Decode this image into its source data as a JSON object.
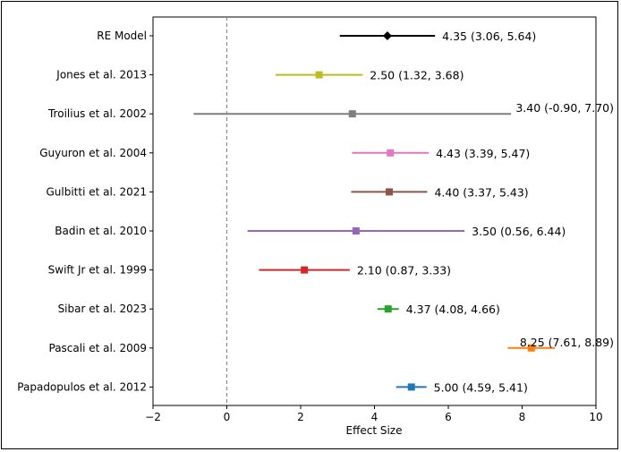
{
  "chart_data": {
    "type": "forest",
    "xlabel": "Effect Size",
    "xlim": [
      -2,
      10
    ],
    "xticks": [
      -2,
      0,
      2,
      4,
      6,
      8,
      10
    ],
    "xtick_labels": [
      "−2",
      "0",
      "2",
      "4",
      "6",
      "8",
      "10"
    ],
    "reference_line": 0,
    "grid": false,
    "studies": [
      {
        "label": "RE Model",
        "estimate": 4.35,
        "lower": 3.06,
        "upper": 5.64,
        "ci_text": "4.35 (3.06, 5.64)",
        "color": "#000000",
        "marker": "diamond"
      },
      {
        "label": "Jones et al. 2013",
        "estimate": 2.5,
        "lower": 1.32,
        "upper": 3.68,
        "ci_text": "2.50 (1.32, 3.68)",
        "color": "#bcbd22",
        "marker": "square"
      },
      {
        "label": "Troilius et al. 2002",
        "estimate": 3.4,
        "lower": -0.9,
        "upper": 7.7,
        "ci_text": "3.40 (-0.90, 7.70)",
        "color": "#7f7f7f",
        "marker": "square"
      },
      {
        "label": "Guyuron et al. 2004",
        "estimate": 4.43,
        "lower": 3.39,
        "upper": 5.47,
        "ci_text": "4.43 (3.39, 5.47)",
        "color": "#e377c2",
        "marker": "square"
      },
      {
        "label": "Gulbitti et al. 2021",
        "estimate": 4.4,
        "lower": 3.37,
        "upper": 5.43,
        "ci_text": "4.40 (3.37, 5.43)",
        "color": "#8c564b",
        "marker": "square"
      },
      {
        "label": "Badin et al. 2010",
        "estimate": 3.5,
        "lower": 0.56,
        "upper": 6.44,
        "ci_text": "3.50 (0.56, 6.44)",
        "color": "#9467bd",
        "marker": "square"
      },
      {
        "label": "Swift Jr et al. 1999",
        "estimate": 2.1,
        "lower": 0.87,
        "upper": 3.33,
        "ci_text": "2.10 (0.87, 3.33)",
        "color": "#d62728",
        "marker": "square"
      },
      {
        "label": "Sibar et al. 2023",
        "estimate": 4.37,
        "lower": 4.08,
        "upper": 4.66,
        "ci_text": "4.37 (4.08, 4.66)",
        "color": "#2ca02c",
        "marker": "square"
      },
      {
        "label": "Pascali et al. 2009",
        "estimate": 8.25,
        "lower": 7.61,
        "upper": 8.89,
        "ci_text": "8.25 (7.61, 8.89)",
        "color": "#ff7f0e",
        "marker": "square"
      },
      {
        "label": "Papadopulos et al. 2012",
        "estimate": 5.0,
        "lower": 4.59,
        "upper": 5.41,
        "ci_text": "5.00 (4.59, 5.41)",
        "color": "#1f77b4",
        "marker": "square"
      }
    ]
  }
}
